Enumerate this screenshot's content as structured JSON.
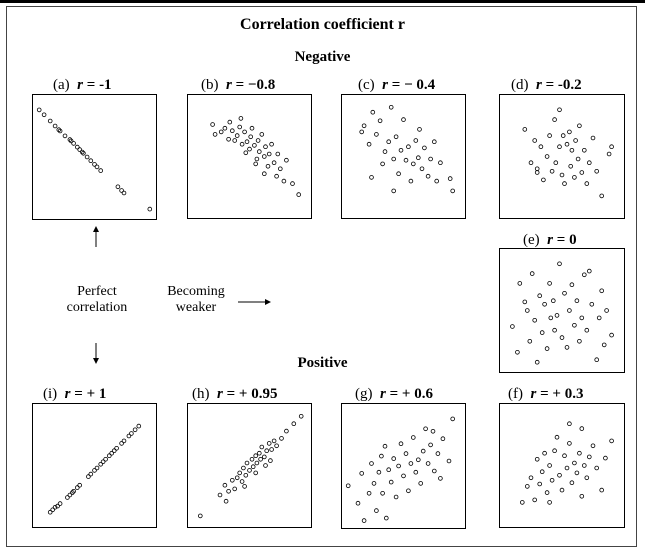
{
  "title": "Correlation coefficient r",
  "sections": {
    "negative": "Negative",
    "positive": "Positive"
  },
  "side_text": {
    "perfect_line1": "Perfect",
    "perfect_line2": "correlation",
    "weaker_line1": "Becoming",
    "weaker_line2": "weaker"
  },
  "chart_data": [
    {
      "type": "scatter",
      "id": "a",
      "tag": "(a)",
      "r_text": "r",
      "eq": " = ",
      "value_text": "-1",
      "r": -1.0,
      "xlim": [
        0,
        1
      ],
      "ylim": [
        0,
        1
      ],
      "points": [
        [
          0.05,
          0.88
        ],
        [
          0.09,
          0.84
        ],
        [
          0.14,
          0.79
        ],
        [
          0.18,
          0.75
        ],
        [
          0.21,
          0.72
        ],
        [
          0.22,
          0.71
        ],
        [
          0.26,
          0.67
        ],
        [
          0.3,
          0.64
        ],
        [
          0.31,
          0.63
        ],
        [
          0.33,
          0.61
        ],
        [
          0.36,
          0.58
        ],
        [
          0.38,
          0.56
        ],
        [
          0.4,
          0.54
        ],
        [
          0.41,
          0.53
        ],
        [
          0.44,
          0.5
        ],
        [
          0.47,
          0.47
        ],
        [
          0.5,
          0.44
        ],
        [
          0.52,
          0.42
        ],
        [
          0.55,
          0.39
        ],
        [
          0.69,
          0.26
        ],
        [
          0.72,
          0.23
        ],
        [
          0.74,
          0.21
        ],
        [
          0.95,
          0.08
        ]
      ]
    },
    {
      "type": "scatter",
      "id": "b",
      "tag": "(b)",
      "r_text": "r",
      "eq": " = ",
      "value_text": "−0.8",
      "r": -0.8,
      "xlim": [
        0,
        1
      ],
      "ylim": [
        0,
        1
      ],
      "points": [
        [
          0.2,
          0.76
        ],
        [
          0.22,
          0.68
        ],
        [
          0.27,
          0.7
        ],
        [
          0.3,
          0.73
        ],
        [
          0.33,
          0.64
        ],
        [
          0.34,
          0.78
        ],
        [
          0.36,
          0.71
        ],
        [
          0.38,
          0.63
        ],
        [
          0.4,
          0.67
        ],
        [
          0.42,
          0.74
        ],
        [
          0.43,
          0.81
        ],
        [
          0.44,
          0.6
        ],
        [
          0.46,
          0.7
        ],
        [
          0.48,
          0.62
        ],
        [
          0.5,
          0.56
        ],
        [
          0.51,
          0.66
        ],
        [
          0.52,
          0.73
        ],
        [
          0.54,
          0.59
        ],
        [
          0.56,
          0.48
        ],
        [
          0.57,
          0.63
        ],
        [
          0.58,
          0.54
        ],
        [
          0.6,
          0.68
        ],
        [
          0.62,
          0.5
        ],
        [
          0.63,
          0.58
        ],
        [
          0.65,
          0.42
        ],
        [
          0.66,
          0.52
        ],
        [
          0.68,
          0.6
        ],
        [
          0.7,
          0.45
        ],
        [
          0.72,
          0.34
        ],
        [
          0.73,
          0.52
        ],
        [
          0.75,
          0.4
        ],
        [
          0.78,
          0.3
        ],
        [
          0.8,
          0.47
        ],
        [
          0.85,
          0.28
        ],
        [
          0.9,
          0.19
        ],
        [
          0.62,
          0.36
        ],
        [
          0.55,
          0.44
        ],
        [
          0.47,
          0.53
        ]
      ]
    },
    {
      "type": "scatter",
      "id": "c",
      "tag": "(c)",
      "r_text": "r",
      "eq": " = ",
      "value_text": "− 0.4",
      "r": -0.4,
      "xlim": [
        0,
        1
      ],
      "ylim": [
        0,
        1
      ],
      "points": [
        [
          0.16,
          0.7
        ],
        [
          0.18,
          0.75
        ],
        [
          0.22,
          0.6
        ],
        [
          0.25,
          0.86
        ],
        [
          0.28,
          0.68
        ],
        [
          0.31,
          0.79
        ],
        [
          0.33,
          0.44
        ],
        [
          0.35,
          0.54
        ],
        [
          0.38,
          0.62
        ],
        [
          0.4,
          0.9
        ],
        [
          0.42,
          0.48
        ],
        [
          0.44,
          0.66
        ],
        [
          0.46,
          0.36
        ],
        [
          0.48,
          0.55
        ],
        [
          0.5,
          0.8
        ],
        [
          0.52,
          0.47
        ],
        [
          0.54,
          0.58
        ],
        [
          0.56,
          0.3
        ],
        [
          0.58,
          0.44
        ],
        [
          0.6,
          0.63
        ],
        [
          0.62,
          0.49
        ],
        [
          0.63,
          0.72
        ],
        [
          0.65,
          0.4
        ],
        [
          0.67,
          0.57
        ],
        [
          0.7,
          0.34
        ],
        [
          0.72,
          0.48
        ],
        [
          0.75,
          0.62
        ],
        [
          0.77,
          0.3
        ],
        [
          0.8,
          0.45
        ],
        [
          0.88,
          0.32
        ],
        [
          0.9,
          0.22
        ],
        [
          0.42,
          0.22
        ],
        [
          0.24,
          0.33
        ]
      ]
    },
    {
      "type": "scatter",
      "id": "d",
      "tag": "(d)",
      "r_text": "r",
      "eq": " = ",
      "value_text": "-0.2",
      "r": -0.2,
      "xlim": [
        0,
        1
      ],
      "ylim": [
        0,
        1
      ],
      "points": [
        [
          0.2,
          0.72
        ],
        [
          0.25,
          0.45
        ],
        [
          0.28,
          0.63
        ],
        [
          0.3,
          0.4
        ],
        [
          0.33,
          0.58
        ],
        [
          0.35,
          0.31
        ],
        [
          0.38,
          0.5
        ],
        [
          0.4,
          0.67
        ],
        [
          0.42,
          0.38
        ],
        [
          0.44,
          0.8
        ],
        [
          0.45,
          0.45
        ],
        [
          0.48,
          0.58
        ],
        [
          0.5,
          0.35
        ],
        [
          0.51,
          0.67
        ],
        [
          0.52,
          0.28
        ],
        [
          0.54,
          0.6
        ],
        [
          0.56,
          0.7
        ],
        [
          0.57,
          0.42
        ],
        [
          0.58,
          0.55
        ],
        [
          0.6,
          0.33
        ],
        [
          0.61,
          0.63
        ],
        [
          0.63,
          0.48
        ],
        [
          0.64,
          0.75
        ],
        [
          0.66,
          0.37
        ],
        [
          0.68,
          0.55
        ],
        [
          0.7,
          0.28
        ],
        [
          0.72,
          0.45
        ],
        [
          0.75,
          0.65
        ],
        [
          0.78,
          0.38
        ],
        [
          0.82,
          0.18
        ],
        [
          0.88,
          0.52
        ],
        [
          0.9,
          0.58
        ],
        [
          0.3,
          0.37
        ],
        [
          0.48,
          0.88
        ]
      ]
    },
    {
      "type": "scatter",
      "id": "e",
      "tag": "(e)",
      "r_text": "r",
      "eq": " = ",
      "value_text": "0",
      "r": 0,
      "xlim": [
        0,
        1
      ],
      "ylim": [
        0,
        1
      ],
      "points": [
        [
          0.1,
          0.37
        ],
        [
          0.14,
          0.16
        ],
        [
          0.16,
          0.72
        ],
        [
          0.2,
          0.57
        ],
        [
          0.22,
          0.5
        ],
        [
          0.24,
          0.25
        ],
        [
          0.26,
          0.8
        ],
        [
          0.28,
          0.42
        ],
        [
          0.32,
          0.62
        ],
        [
          0.34,
          0.32
        ],
        [
          0.36,
          0.55
        ],
        [
          0.38,
          0.19
        ],
        [
          0.4,
          0.72
        ],
        [
          0.41,
          0.44
        ],
        [
          0.43,
          0.58
        ],
        [
          0.44,
          0.34
        ],
        [
          0.46,
          0.46
        ],
        [
          0.48,
          0.88
        ],
        [
          0.5,
          0.28
        ],
        [
          0.52,
          0.64
        ],
        [
          0.54,
          0.2
        ],
        [
          0.56,
          0.5
        ],
        [
          0.58,
          0.71
        ],
        [
          0.6,
          0.38
        ],
        [
          0.62,
          0.58
        ],
        [
          0.64,
          0.25
        ],
        [
          0.66,
          0.44
        ],
        [
          0.68,
          0.79
        ],
        [
          0.7,
          0.34
        ],
        [
          0.74,
          0.55
        ],
        [
          0.78,
          0.1
        ],
        [
          0.8,
          0.44
        ],
        [
          0.82,
          0.66
        ],
        [
          0.84,
          0.22
        ],
        [
          0.86,
          0.5
        ],
        [
          0.9,
          0.3
        ],
        [
          0.3,
          0.08
        ],
        [
          0.72,
          0.82
        ]
      ]
    },
    {
      "type": "scatter",
      "id": "f",
      "tag": "(f)",
      "r_text": "r",
      "eq": " = + ",
      "value_text": "0.3",
      "r": 0.3,
      "xlim": [
        0,
        1
      ],
      "ylim": [
        0,
        1
      ],
      "points": [
        [
          0.18,
          0.2
        ],
        [
          0.22,
          0.33
        ],
        [
          0.25,
          0.4
        ],
        [
          0.28,
          0.22
        ],
        [
          0.3,
          0.55
        ],
        [
          0.32,
          0.35
        ],
        [
          0.34,
          0.45
        ],
        [
          0.36,
          0.6
        ],
        [
          0.38,
          0.28
        ],
        [
          0.4,
          0.5
        ],
        [
          0.42,
          0.38
        ],
        [
          0.44,
          0.62
        ],
        [
          0.46,
          0.73
        ],
        [
          0.48,
          0.42
        ],
        [
          0.5,
          0.3
        ],
        [
          0.52,
          0.58
        ],
        [
          0.54,
          0.48
        ],
        [
          0.56,
          0.68
        ],
        [
          0.58,
          0.36
        ],
        [
          0.6,
          0.52
        ],
        [
          0.62,
          0.44
        ],
        [
          0.64,
          0.6
        ],
        [
          0.66,
          0.8
        ],
        [
          0.68,
          0.5
        ],
        [
          0.7,
          0.4
        ],
        [
          0.72,
          0.57
        ],
        [
          0.75,
          0.66
        ],
        [
          0.78,
          0.48
        ],
        [
          0.82,
          0.3
        ],
        [
          0.85,
          0.56
        ],
        [
          0.9,
          0.7
        ],
        [
          0.4,
          0.2
        ],
        [
          0.56,
          0.84
        ],
        [
          0.66,
          0.25
        ]
      ]
    },
    {
      "type": "scatter",
      "id": "g",
      "tag": "(g)",
      "r_text": "r",
      "eq": " = + ",
      "value_text": "0.6",
      "r": 0.6,
      "xlim": [
        0,
        1
      ],
      "ylim": [
        0,
        1
      ],
      "points": [
        [
          0.05,
          0.34
        ],
        [
          0.13,
          0.2
        ],
        [
          0.16,
          0.44
        ],
        [
          0.18,
          0.06
        ],
        [
          0.22,
          0.28
        ],
        [
          0.24,
          0.52
        ],
        [
          0.26,
          0.36
        ],
        [
          0.28,
          0.14
        ],
        [
          0.3,
          0.45
        ],
        [
          0.32,
          0.58
        ],
        [
          0.33,
          0.28
        ],
        [
          0.35,
          0.66
        ],
        [
          0.36,
          0.08
        ],
        [
          0.38,
          0.47
        ],
        [
          0.4,
          0.37
        ],
        [
          0.42,
          0.56
        ],
        [
          0.44,
          0.25
        ],
        [
          0.46,
          0.5
        ],
        [
          0.48,
          0.68
        ],
        [
          0.5,
          0.42
        ],
        [
          0.52,
          0.6
        ],
        [
          0.54,
          0.3
        ],
        [
          0.56,
          0.52
        ],
        [
          0.58,
          0.73
        ],
        [
          0.6,
          0.45
        ],
        [
          0.62,
          0.55
        ],
        [
          0.64,
          0.36
        ],
        [
          0.66,
          0.62
        ],
        [
          0.68,
          0.8
        ],
        [
          0.7,
          0.52
        ],
        [
          0.72,
          0.67
        ],
        [
          0.75,
          0.46
        ],
        [
          0.78,
          0.6
        ],
        [
          0.8,
          0.4
        ],
        [
          0.82,
          0.72
        ],
        [
          0.87,
          0.54
        ],
        [
          0.9,
          0.88
        ],
        [
          0.74,
          0.78
        ]
      ]
    },
    {
      "type": "scatter",
      "id": "h",
      "tag": "(h)",
      "r_text": "r",
      "eq": " = + ",
      "value_text": "0.95",
      "r": 0.95,
      "xlim": [
        0,
        1
      ],
      "ylim": [
        0,
        1
      ],
      "points": [
        [
          0.1,
          0.09
        ],
        [
          0.26,
          0.26
        ],
        [
          0.3,
          0.34
        ],
        [
          0.31,
          0.21
        ],
        [
          0.33,
          0.29
        ],
        [
          0.36,
          0.38
        ],
        [
          0.38,
          0.31
        ],
        [
          0.4,
          0.4
        ],
        [
          0.42,
          0.44
        ],
        [
          0.44,
          0.37
        ],
        [
          0.45,
          0.48
        ],
        [
          0.47,
          0.42
        ],
        [
          0.48,
          0.52
        ],
        [
          0.5,
          0.46
        ],
        [
          0.52,
          0.55
        ],
        [
          0.53,
          0.49
        ],
        [
          0.55,
          0.58
        ],
        [
          0.56,
          0.52
        ],
        [
          0.58,
          0.6
        ],
        [
          0.59,
          0.55
        ],
        [
          0.6,
          0.65
        ],
        [
          0.62,
          0.57
        ],
        [
          0.63,
          0.5
        ],
        [
          0.64,
          0.62
        ],
        [
          0.66,
          0.68
        ],
        [
          0.67,
          0.54
        ],
        [
          0.68,
          0.63
        ],
        [
          0.7,
          0.7
        ],
        [
          0.72,
          0.66
        ],
        [
          0.76,
          0.72
        ],
        [
          0.8,
          0.78
        ],
        [
          0.86,
          0.84
        ],
        [
          0.92,
          0.9
        ],
        [
          0.55,
          0.44
        ],
        [
          0.46,
          0.33
        ]
      ]
    },
    {
      "type": "scatter",
      "id": "i",
      "tag": "(i)",
      "r_text": "r",
      "eq": " = + ",
      "value_text": "1",
      "r": 1.0,
      "xlim": [
        0,
        1
      ],
      "ylim": [
        0,
        1
      ],
      "points": [
        [
          0.14,
          0.12
        ],
        [
          0.16,
          0.14
        ],
        [
          0.18,
          0.16
        ],
        [
          0.2,
          0.17
        ],
        [
          0.22,
          0.19
        ],
        [
          0.28,
          0.24
        ],
        [
          0.3,
          0.26
        ],
        [
          0.32,
          0.28
        ],
        [
          0.33,
          0.29
        ],
        [
          0.36,
          0.32
        ],
        [
          0.38,
          0.34
        ],
        [
          0.45,
          0.41
        ],
        [
          0.47,
          0.43
        ],
        [
          0.5,
          0.46
        ],
        [
          0.52,
          0.48
        ],
        [
          0.55,
          0.51
        ],
        [
          0.57,
          0.53
        ],
        [
          0.59,
          0.55
        ],
        [
          0.62,
          0.58
        ],
        [
          0.64,
          0.6
        ],
        [
          0.66,
          0.62
        ],
        [
          0.68,
          0.64
        ],
        [
          0.72,
          0.68
        ],
        [
          0.74,
          0.7
        ],
        [
          0.78,
          0.74
        ],
        [
          0.8,
          0.76
        ],
        [
          0.83,
          0.79
        ],
        [
          0.86,
          0.82
        ]
      ]
    }
  ]
}
